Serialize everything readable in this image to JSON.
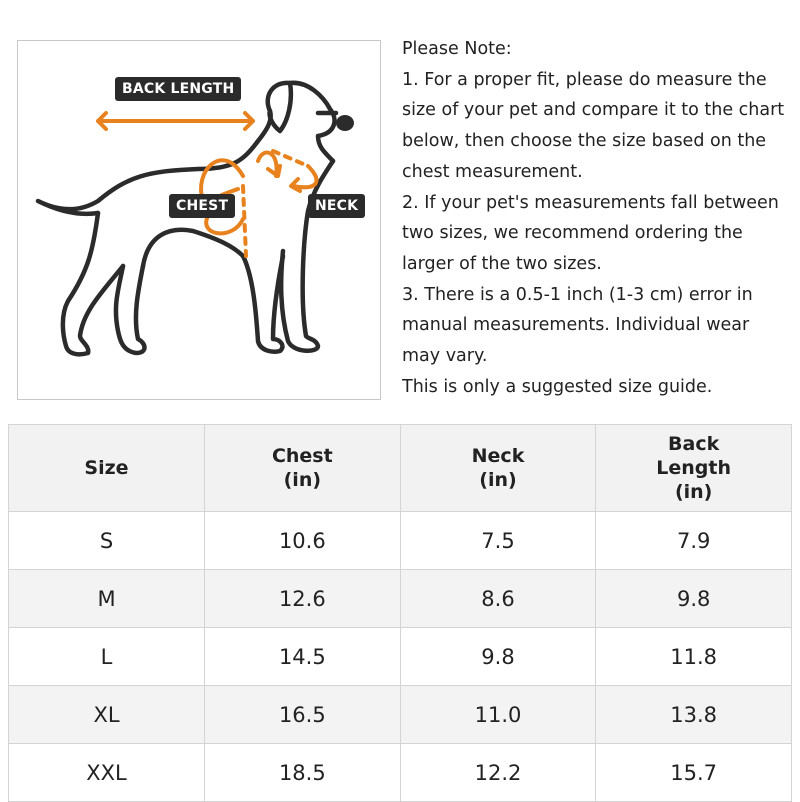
{
  "diagram": {
    "labels": {
      "back_length": "BACK LENGTH",
      "chest": "CHEST",
      "neck": "NECK"
    },
    "colors": {
      "arrow": "#e8821e",
      "outline": "#2b2b2b",
      "tag_bg": "#2b2b2b"
    }
  },
  "note": {
    "title": "Please Note:",
    "lines": [
      "1. For a proper fit, please do measure the",
      "size of your pet and compare it to the chart",
      "below, then choose the size based on the",
      "chest measurement.",
      "2. If your pet's measurements fall between",
      "two sizes, we recommend ordering the",
      "larger of the two sizes.",
      "3. There is a 0.5-1 inch (1-3 cm) error in",
      "manual measurements. Individual wear",
      "may vary.",
      "This is only a suggested size guide."
    ]
  },
  "table": {
    "headers": [
      [
        "Size"
      ],
      [
        "Chest",
        "(in)"
      ],
      [
        "Neck",
        "(in)"
      ],
      [
        "Back",
        "Length",
        "(in)"
      ]
    ],
    "rows": [
      [
        "S",
        "10.6",
        "7.5",
        "7.9"
      ],
      [
        "M",
        "12.6",
        "8.6",
        "9.8"
      ],
      [
        "L",
        "14.5",
        "9.8",
        "11.8"
      ],
      [
        "XL",
        "16.5",
        "11.0",
        "13.8"
      ],
      [
        "XXL",
        "18.5",
        "12.2",
        "15.7"
      ]
    ]
  }
}
